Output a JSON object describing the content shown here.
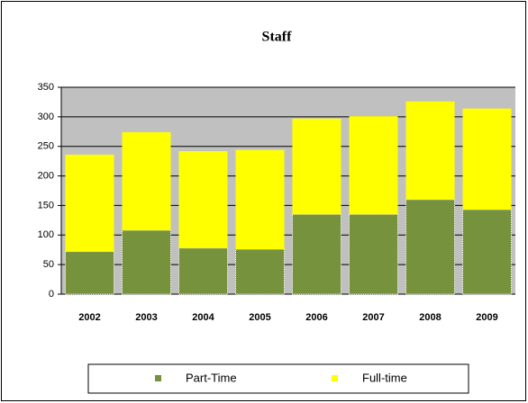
{
  "chart_data": {
    "type": "stacked_bar",
    "title": "Staff",
    "categories": [
      "2002",
      "2003",
      "2004",
      "2005",
      "2006",
      "2007",
      "2008",
      "2009"
    ],
    "series": [
      {
        "name": "Part-Time",
        "color": "#76923c",
        "values": [
          72,
          108,
          78,
          76,
          135,
          135,
          160,
          143
        ]
      },
      {
        "name": "Full-time",
        "color": "#ffff00",
        "values": [
          164,
          166,
          164,
          168,
          162,
          166,
          166,
          171
        ]
      }
    ],
    "ylim": [
      0,
      350
    ],
    "yticks": [
      0,
      50,
      100,
      150,
      200,
      250,
      300,
      350
    ],
    "grid": true,
    "legend": "bottom"
  }
}
